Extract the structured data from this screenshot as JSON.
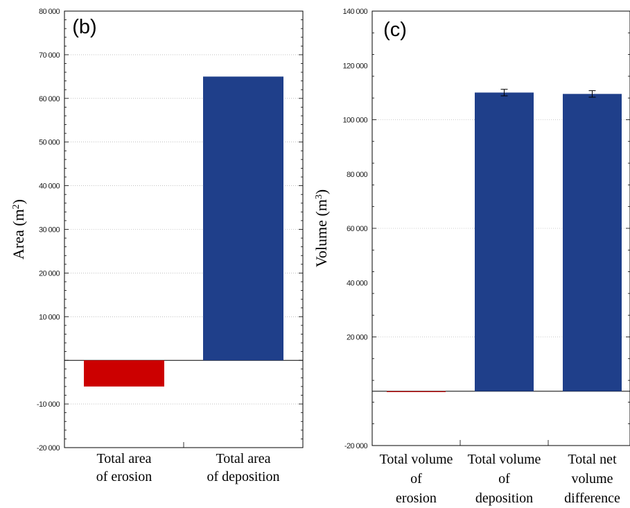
{
  "chart_data": [
    {
      "type": "bar",
      "panel_label": "(b)",
      "ylabel": "Area (m",
      "ylabel_sup": "2",
      "ylabel_close": ")",
      "categories": [
        [
          "Total area",
          "of erosion"
        ],
        [
          "Total area",
          "of deposition"
        ]
      ],
      "values": [
        -6000,
        65000
      ],
      "colors": [
        "#cc0000",
        "#1f3f8a"
      ],
      "ylim": [
        -20000,
        80000
      ],
      "yticks": [
        -20000,
        -10000,
        10000,
        20000,
        30000,
        40000,
        50000,
        60000,
        70000,
        80000
      ],
      "ytick_labels": [
        "-20 000",
        "-10 000",
        "10 000",
        "20 000",
        "30 000",
        "40 000",
        "50 000",
        "60 000",
        "70 000",
        "80 000"
      ],
      "grid": true
    },
    {
      "type": "bar",
      "panel_label": "(c)",
      "ylabel": "Volume (m",
      "ylabel_sup": "3",
      "ylabel_close": ")",
      "categories": [
        [
          "Total volume",
          "of",
          "erosion"
        ],
        [
          "Total volume",
          "of",
          "deposition"
        ],
        [
          "Total net",
          "volume",
          "difference"
        ]
      ],
      "values": [
        -300,
        110000,
        109500
      ],
      "error": [
        200,
        1200,
        1200
      ],
      "colors": [
        "#cc0000",
        "#1f3f8a",
        "#1f3f8a"
      ],
      "ylim": [
        -20000,
        140000
      ],
      "yticks": [
        -20000,
        20000,
        40000,
        60000,
        80000,
        100000,
        120000,
        140000
      ],
      "ytick_labels": [
        "-20 000",
        "20 000",
        "40 000",
        "60 000",
        "80 000",
        "100 000",
        "120 000",
        "140 000"
      ],
      "grid": true
    }
  ]
}
